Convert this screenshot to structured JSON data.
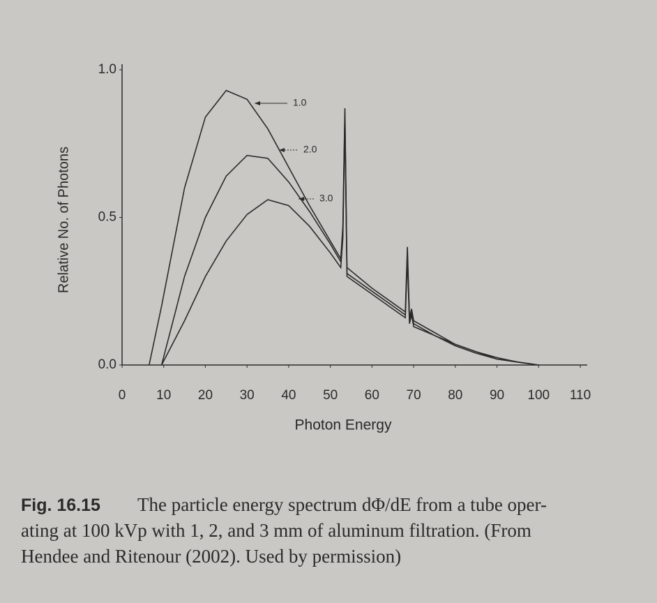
{
  "chart_data": {
    "type": "line",
    "x_label": "Photon Energy",
    "y_label": "Relative No. of Photons",
    "xlim": [
      0,
      110
    ],
    "ylim": [
      0,
      1
    ],
    "xticks": [
      0,
      10,
      20,
      30,
      40,
      50,
      60,
      70,
      80,
      90,
      100,
      110
    ],
    "yticks": [
      {
        "value": 0,
        "label": "0.0"
      },
      {
        "value": 0.5,
        "label": "0.5"
      },
      {
        "value": 1,
        "label": "1.0"
      }
    ],
    "x": [
      6.5,
      9.5,
      15,
      20,
      25,
      30,
      35,
      40,
      45,
      50,
      52.5,
      53,
      53.5,
      54,
      60,
      65,
      68,
      68.5,
      69,
      69.5,
      70,
      75,
      80,
      85,
      90,
      95,
      100
    ],
    "series": [
      {
        "name": "1.0",
        "color": "#2a2a2a",
        "values": [
          0,
          0.2,
          0.6,
          0.84,
          0.93,
          0.9,
          0.8,
          0.67,
          0.54,
          0.42,
          0.36,
          0.47,
          0.87,
          0.33,
          0.26,
          0.21,
          0.18,
          0.4,
          0.16,
          0.19,
          0.15,
          0.11,
          0.07,
          0.045,
          0.025,
          0.01,
          0
        ]
      },
      {
        "name": "2.0",
        "color": "#2a2a2a",
        "values": [
          null,
          0,
          0.3,
          0.5,
          0.64,
          0.71,
          0.7,
          0.62,
          0.52,
          0.41,
          0.35,
          0.45,
          0.85,
          0.31,
          0.25,
          0.2,
          0.17,
          0.38,
          0.15,
          0.18,
          0.14,
          0.1,
          0.07,
          0.045,
          0.02,
          0.01,
          0
        ]
      },
      {
        "name": "3.0",
        "color": "#2a2a2a",
        "values": [
          null,
          0,
          0.15,
          0.3,
          0.42,
          0.51,
          0.56,
          0.54,
          0.47,
          0.38,
          0.33,
          0.43,
          0.83,
          0.3,
          0.24,
          0.19,
          0.16,
          0.36,
          0.14,
          0.17,
          0.13,
          0.1,
          0.065,
          0.04,
          0.02,
          0.01,
          0
        ]
      }
    ],
    "caption": {
      "label": "Fig. 16.15",
      "lines": [
        "The particle energy spectrum dΦ/dE from a tube oper-",
        "ating at 100 kVp with 1, 2, and 3 mm of aluminum filtration. (From",
        "Hendee and Ritenour (2002). Used by permission)"
      ]
    }
  }
}
